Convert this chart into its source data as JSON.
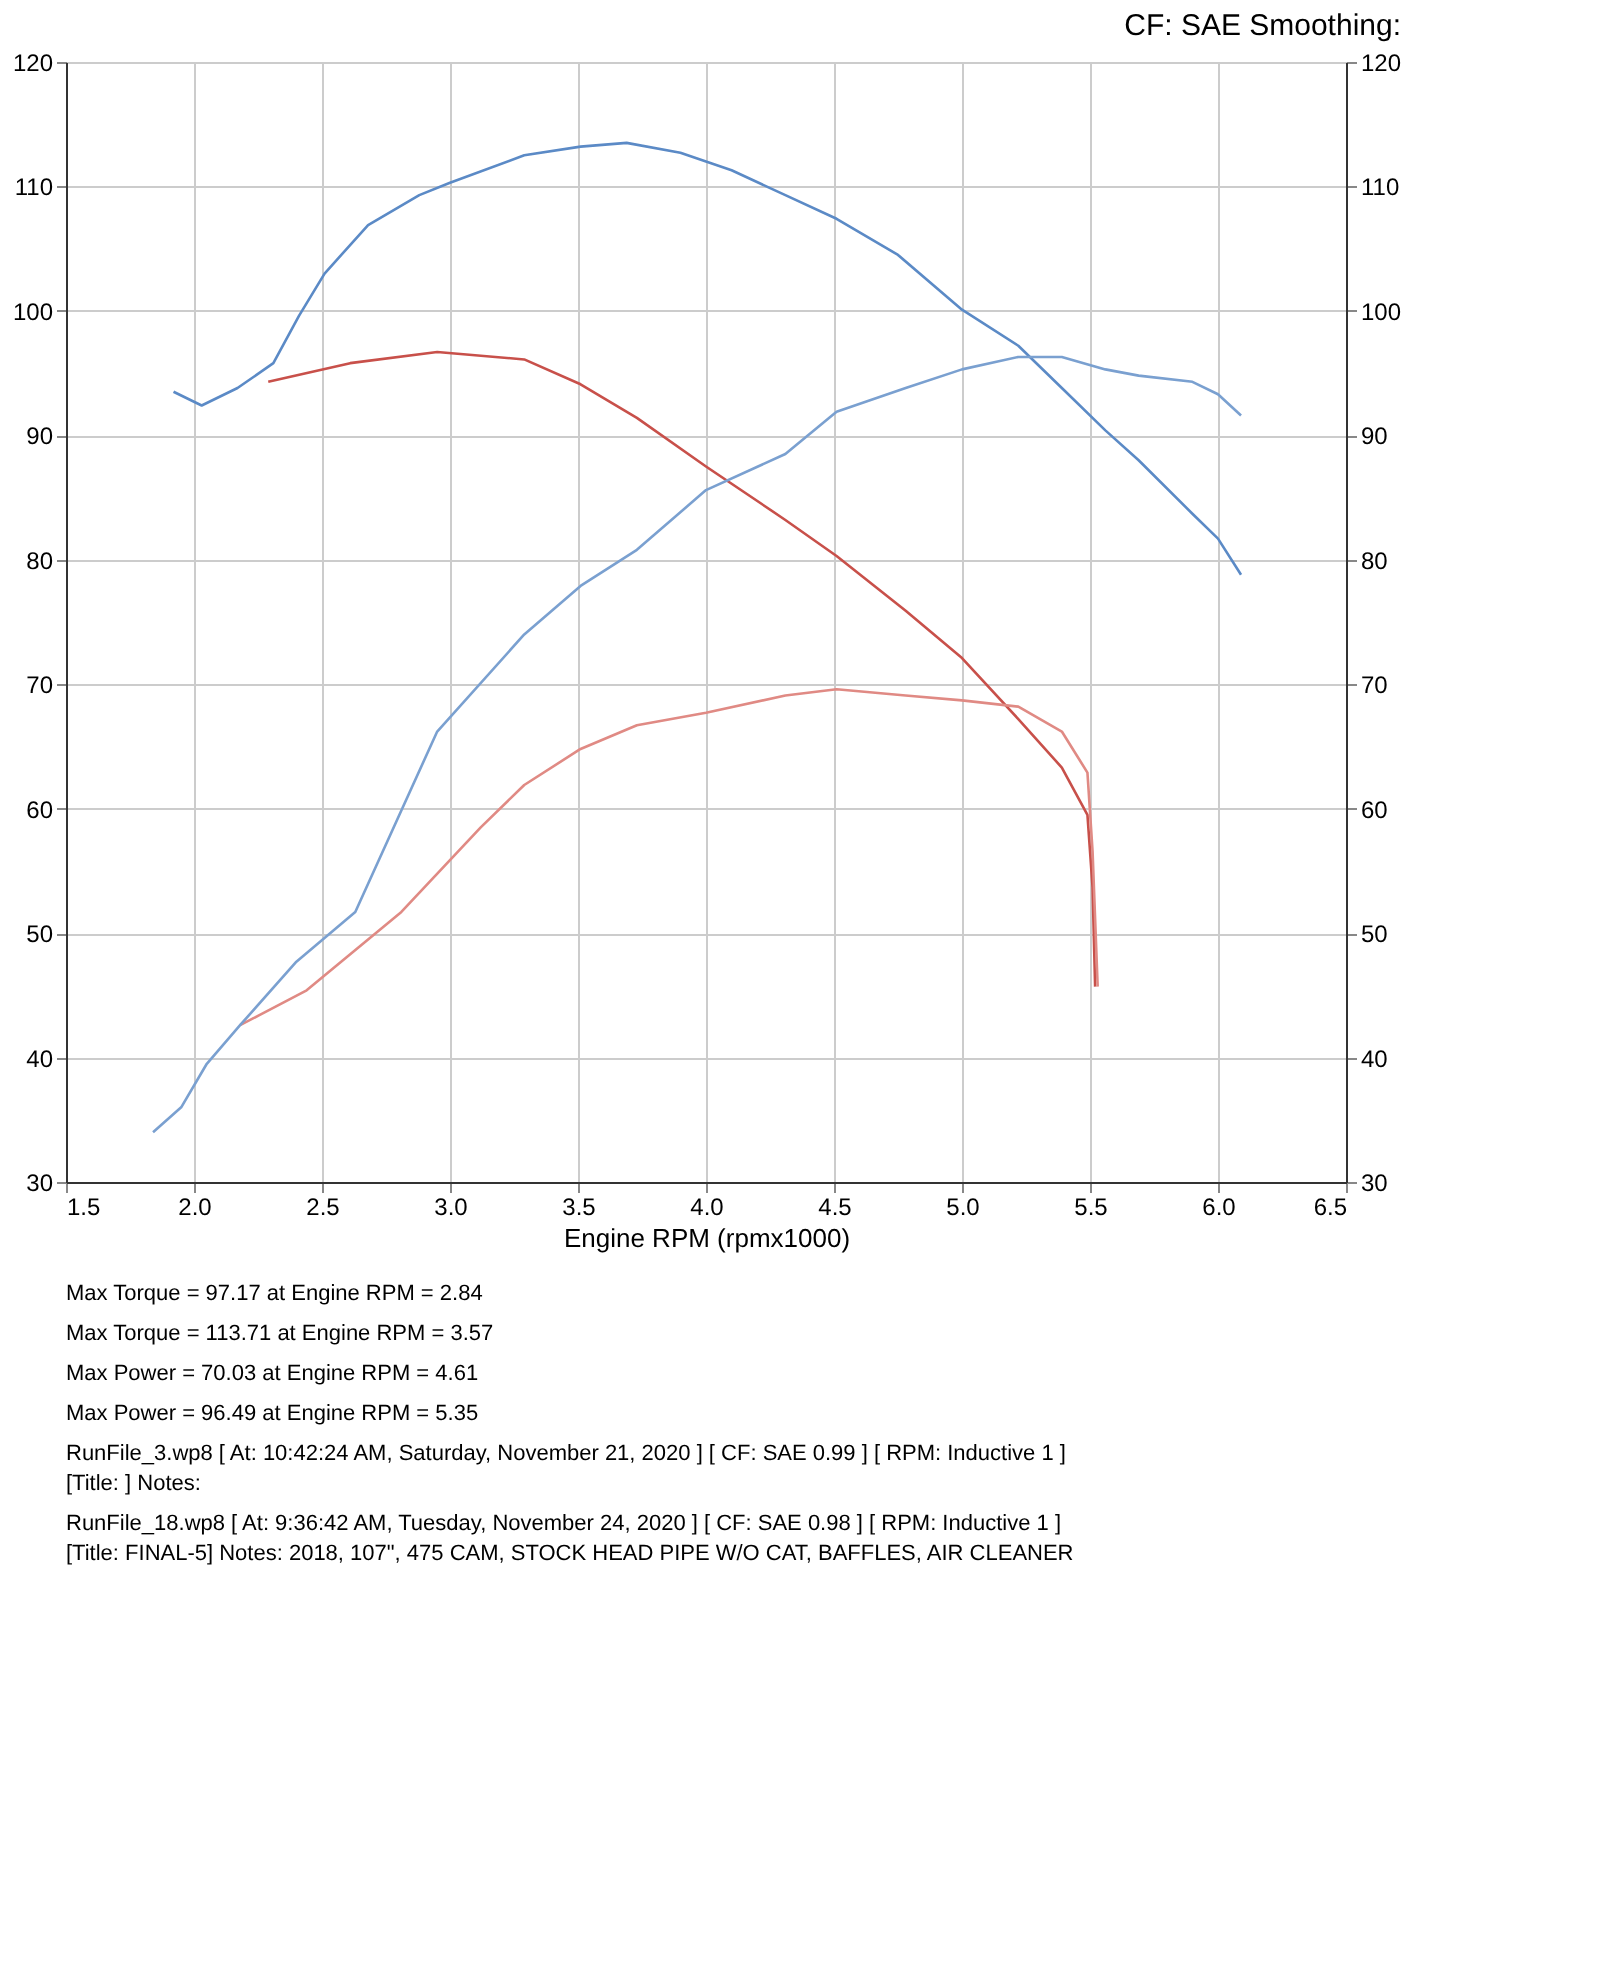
{
  "chart_data": {
    "type": "line",
    "title": "CF: SAE Smoothing:",
    "xlabel": "Engine RPM (rpmx1000)",
    "xlim": [
      1.5,
      6.5
    ],
    "xticks": [
      1.5,
      {
        "value": 2,
        "label": "2.0"
      },
      2.5,
      {
        "value": 3,
        "label": "3.0"
      },
      3.5,
      {
        "value": 4,
        "label": "4.0"
      },
      4.5,
      {
        "value": 5,
        "label": "5.0"
      },
      5.5,
      {
        "value": 6,
        "label": "6.0"
      },
      6.5
    ],
    "ylim": [
      30,
      120
    ],
    "yticks": [
      30,
      40,
      50,
      60,
      70,
      80,
      90,
      100,
      110,
      120
    ],
    "y2lim": [
      30,
      120
    ],
    "y2ticks": [
      30,
      40,
      50,
      60,
      70,
      80,
      90,
      100,
      110,
      120
    ],
    "grid": true,
    "marker": "none",
    "line_style": "solid",
    "series": [
      {
        "color": "#c8504a",
        "x": [
          2.29,
          2.61,
          2.95,
          3.29,
          3.51,
          3.73,
          4.0,
          4.31,
          4.51,
          4.78,
          5.0,
          5.22,
          5.39,
          5.49,
          5.51,
          5.52
        ],
        "values": [
          94.3,
          95.8,
          96.7,
          96.1,
          94.1,
          91.4,
          87.5,
          83.2,
          80.3,
          75.9,
          72.1,
          67.2,
          63.3,
          59.5,
          53.7,
          45.7
        ]
      },
      {
        "color": "#e08a84",
        "x": [
          2.18,
          2.44,
          2.81,
          3.12,
          3.29,
          3.51,
          3.73,
          4.0,
          4.31,
          4.51,
          4.78,
          5.0,
          5.22,
          5.39,
          5.49,
          5.51,
          5.53
        ],
        "values": [
          42.6,
          45.4,
          51.7,
          58.5,
          61.9,
          64.8,
          66.7,
          67.7,
          69.1,
          69.6,
          69.1,
          68.7,
          68.2,
          66.2,
          62.9,
          56.6,
          45.7
        ]
      },
      {
        "color": "#5b8ac6",
        "x": [
          1.92,
          2.03,
          2.17,
          2.31,
          2.41,
          2.51,
          2.68,
          2.88,
          3.0,
          3.29,
          3.51,
          3.69,
          3.9,
          4.1,
          4.31,
          4.51,
          4.75,
          5.0,
          5.22,
          5.39,
          5.56,
          5.69,
          5.9,
          6.0,
          6.09
        ],
        "values": [
          93.5,
          92.4,
          93.8,
          95.8,
          99.6,
          103.0,
          106.9,
          109.3,
          110.3,
          112.5,
          113.2,
          113.5,
          112.7,
          111.3,
          109.3,
          107.4,
          104.5,
          100.1,
          97.2,
          93.8,
          90.4,
          88.0,
          83.7,
          81.7,
          78.8
        ]
      },
      {
        "color": "#7aa0d0",
        "x": [
          1.84,
          1.95,
          2.05,
          2.18,
          2.4,
          2.63,
          2.95,
          3.29,
          3.51,
          3.73,
          4.0,
          4.31,
          4.51,
          4.78,
          5.0,
          5.22,
          5.39,
          5.56,
          5.69,
          5.9,
          6.0,
          6.09
        ],
        "values": [
          34.0,
          36.0,
          39.5,
          42.6,
          47.7,
          51.7,
          66.2,
          74.0,
          77.9,
          80.8,
          85.6,
          88.5,
          91.9,
          93.8,
          95.3,
          96.3,
          96.3,
          95.3,
          94.8,
          94.3,
          93.3,
          91.6
        ]
      }
    ],
    "annotations": [
      "Max Torque = 97.17 at Engine RPM = 2.84",
      "Max Torque = 113.71 at Engine RPM = 3.57",
      "Max Power = 70.03 at Engine RPM = 4.61",
      "Max Power = 96.49 at Engine RPM = 5.35",
      "RunFile_3.wp8 [ At: 10:42:24 AM, Saturday, November 21, 2020 ] [ CF: SAE 0.99 ] [ RPM: Inductive 1 ] [Title: ] Notes:",
      "RunFile_18.wp8 [ At: 9:36:42 AM, Tuesday, November 24, 2020 ] [ CF: SAE 0.98 ] [ RPM: Inductive 1 ] [Title: FINAL-5] Notes: 2018, 107\", 475 CAM, STOCK HEAD PIPE W/O CAT, BAFFLES, AIR CLEANER"
    ]
  }
}
